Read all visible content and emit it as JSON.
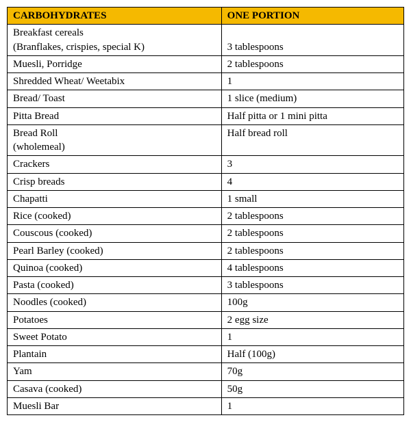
{
  "table": {
    "header_bg": "#f5b900",
    "header_text_color": "#000000",
    "cell_text_color": "#000000",
    "border_color": "#000000",
    "font_family": "Times New Roman",
    "font_size_pt": 11,
    "columns": [
      "CARBOHYDRATES",
      "ONE PORTION"
    ],
    "rows": [
      [
        "Breakfast cereals\n(Branflakes, crispies, special K)",
        "\n3 tablespoons"
      ],
      [
        "Muesli, Porridge",
        "2 tablespoons"
      ],
      [
        "Shredded  Wheat/ Weetabix",
        "1"
      ],
      [
        "Bread/ Toast",
        "1 slice (medium)"
      ],
      [
        "Pitta Bread",
        "Half pitta or 1 mini pitta"
      ],
      [
        "Bread Roll\n(wholemeal)",
        "Half bread roll"
      ],
      [
        "Crackers",
        "3"
      ],
      [
        "Crisp breads",
        "4"
      ],
      [
        "Chapatti",
        "1 small"
      ],
      [
        "Rice (cooked)",
        "2 tablespoons"
      ],
      [
        "Couscous (cooked)",
        "2 tablespoons"
      ],
      [
        "Pearl Barley (cooked)",
        "2 tablespoons"
      ],
      [
        "Quinoa (cooked)",
        "4 tablespoons"
      ],
      [
        "Pasta (cooked)",
        "3 tablespoons"
      ],
      [
        "Noodles (cooked)",
        "100g"
      ],
      [
        "Potatoes",
        "2 egg size"
      ],
      [
        "Sweet Potato",
        "1"
      ],
      [
        "Plantain",
        "Half (100g)"
      ],
      [
        "Yam",
        "70g"
      ],
      [
        "Casava (cooked)",
        "50g"
      ],
      [
        "Muesli Bar",
        "1"
      ]
    ]
  }
}
